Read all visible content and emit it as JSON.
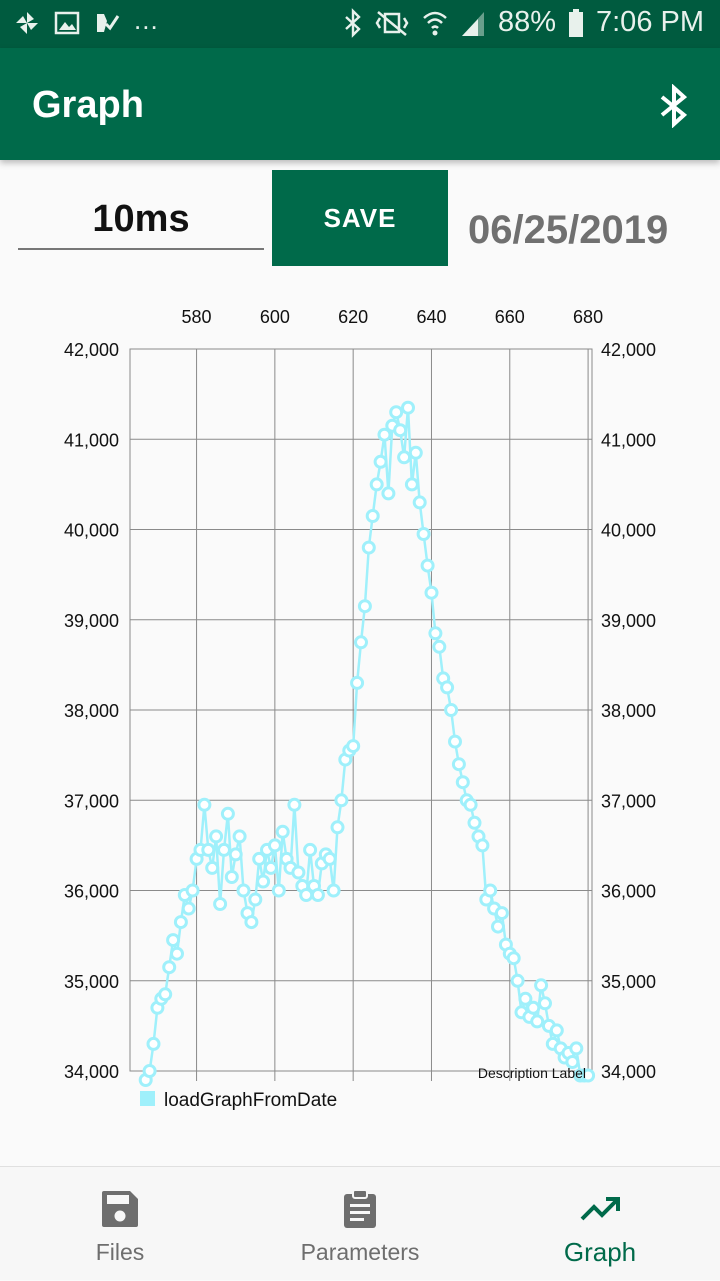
{
  "status_bar": {
    "battery": "88%",
    "time": "7:06 PM",
    "overflow": "..."
  },
  "app_bar": {
    "title": "Graph",
    "action_icon": "bluetooth-icon"
  },
  "controls": {
    "interval_value": "10ms",
    "save_label": "SAVE",
    "date": "06/25/2019"
  },
  "colors": {
    "primary": "#006a4a",
    "status_bar": "#005b3f",
    "series": "#9ff0fb"
  },
  "chart_data": {
    "type": "line",
    "x_ticks": [
      580,
      600,
      620,
      640,
      660,
      680
    ],
    "x_tick_labels": [
      "580",
      "600",
      "620",
      "640",
      "660",
      "680"
    ],
    "xlim": [
      563,
      681
    ],
    "y_ticks": [
      34000,
      35000,
      36000,
      37000,
      38000,
      39000,
      40000,
      41000,
      42000
    ],
    "y_tick_labels": [
      "34,000",
      "35,000",
      "36,000",
      "37,000",
      "38,000",
      "39,000",
      "40,000",
      "41,000",
      "42,000"
    ],
    "ylim": [
      34000,
      42000
    ],
    "description": "Description Label",
    "grid": true,
    "legend_position": "bottom-left",
    "series": [
      {
        "name": "loadGraphFromDate",
        "x": [
          567,
          568,
          569,
          570,
          571,
          572,
          573,
          574,
          575,
          576,
          577,
          578,
          579,
          580,
          581,
          582,
          583,
          584,
          585,
          586,
          587,
          588,
          589,
          590,
          591,
          592,
          593,
          594,
          595,
          596,
          597,
          598,
          599,
          600,
          601,
          602,
          603,
          604,
          605,
          606,
          607,
          608,
          609,
          610,
          611,
          612,
          613,
          614,
          615,
          616,
          617,
          618,
          619,
          620,
          621,
          622,
          623,
          624,
          625,
          626,
          627,
          628,
          629,
          630,
          631,
          632,
          633,
          634,
          635,
          636,
          637,
          638,
          639,
          640,
          641,
          642,
          643,
          644,
          645,
          646,
          647,
          648,
          649,
          650,
          651,
          652,
          653,
          654,
          655,
          656,
          657,
          658,
          659,
          660,
          661,
          662,
          663,
          664,
          665,
          666,
          667,
          668,
          669,
          670,
          671,
          672,
          673,
          674,
          675,
          676,
          677,
          678,
          679,
          680
        ],
        "y": [
          33900,
          34000,
          34300,
          34700,
          34800,
          34850,
          35150,
          35450,
          35300,
          35650,
          35950,
          35800,
          36000,
          36350,
          36450,
          36950,
          36450,
          36250,
          36600,
          35850,
          36450,
          36850,
          36150,
          36400,
          36600,
          36000,
          35750,
          35650,
          35900,
          36350,
          36100,
          36450,
          36250,
          36500,
          36000,
          36650,
          36350,
          36250,
          36950,
          36200,
          36050,
          35950,
          36450,
          36050,
          35950,
          36300,
          36400,
          36350,
          36000,
          36700,
          37000,
          37450,
          37550,
          37600,
          38300,
          38750,
          39150,
          39800,
          40150,
          40500,
          40750,
          41050,
          40400,
          41150,
          41300,
          41100,
          40800,
          41350,
          40500,
          40850,
          40300,
          39950,
          39600,
          39300,
          38850,
          38700,
          38350,
          38250,
          38000,
          37650,
          37400,
          37200,
          37000,
          36950,
          36750,
          36600,
          36500,
          35900,
          36000,
          35800,
          35600,
          35750,
          35400,
          35300,
          35250,
          35000,
          34650,
          34800,
          34600,
          34700,
          34550,
          34950,
          34750,
          34500,
          34300,
          34450,
          34250,
          34150,
          34200,
          34100,
          34250,
          33950,
          33950,
          33950
        ]
      }
    ]
  },
  "bottom_nav": {
    "items": [
      {
        "label": "Files",
        "icon": "floppy-disk-icon"
      },
      {
        "label": "Parameters",
        "icon": "clipboard-icon"
      },
      {
        "label": "Graph",
        "icon": "trending-up-icon"
      }
    ],
    "active_index": 2
  }
}
